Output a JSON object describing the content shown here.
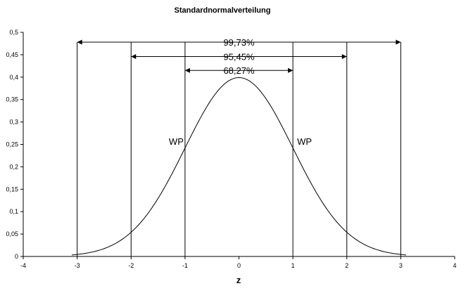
{
  "chart_data": {
    "type": "line",
    "title": "Standardnormalverteilung",
    "xlabel": "z",
    "ylabel": "",
    "xlim": [
      -4,
      4
    ],
    "ylim": [
      0,
      0.5
    ],
    "x_ticks": [
      -4,
      -3,
      -2,
      -1,
      0,
      1,
      2,
      3,
      4
    ],
    "x_tick_labels": [
      "-4",
      "-3",
      "-2",
      "-1",
      "0",
      "1",
      "2",
      "3",
      "4"
    ],
    "y_ticks": [
      0,
      0.05,
      0.1,
      0.15,
      0.2,
      0.25,
      0.3,
      0.35,
      0.4,
      0.45,
      0.5
    ],
    "y_tick_labels": [
      "0",
      "0,05",
      "0,1",
      "0,15",
      "0,2",
      "0,25",
      "0,3",
      "0,35",
      "0,4",
      "0,45",
      "0,5"
    ],
    "grid": false,
    "legend": "none",
    "series": [
      {
        "x": [
          -3.1,
          -3.0,
          -2.8,
          -2.6,
          -2.4,
          -2.2,
          -2.0,
          -1.8,
          -1.6,
          -1.4,
          -1.2,
          -1.0,
          -0.8,
          -0.6,
          -0.4,
          -0.2,
          0.0,
          0.2,
          0.4,
          0.6,
          0.8,
          1.0,
          1.2,
          1.4,
          1.6,
          1.8,
          2.0,
          2.2,
          2.4,
          2.6,
          2.8,
          3.0,
          3.1
        ],
        "y": [
          0.0033,
          0.0044,
          0.0079,
          0.0136,
          0.0224,
          0.0355,
          0.054,
          0.079,
          0.1109,
          0.1497,
          0.1942,
          0.242,
          0.2897,
          0.3332,
          0.3683,
          0.391,
          0.3989,
          0.391,
          0.3683,
          0.3332,
          0.2897,
          0.242,
          0.1942,
          0.1497,
          0.1109,
          0.079,
          0.054,
          0.0355,
          0.0224,
          0.0136,
          0.0079,
          0.0044,
          0.0033
        ]
      }
    ],
    "vertical_lines": [
      -3,
      -2,
      -1,
      1,
      2,
      3
    ],
    "intervals": [
      {
        "label": "99,73%",
        "from": -3,
        "to": 3,
        "y": 0.478
      },
      {
        "label": "95,45%",
        "from": -2,
        "to": 2,
        "y": 0.446
      },
      {
        "label": "68,27%",
        "from": -1,
        "to": 1,
        "y": 0.415
      }
    ],
    "annotations": [
      {
        "text": "WP",
        "x": -1,
        "y": 0.248,
        "side": "left"
      },
      {
        "text": "WP",
        "x": 1,
        "y": 0.248,
        "side": "right"
      }
    ]
  }
}
